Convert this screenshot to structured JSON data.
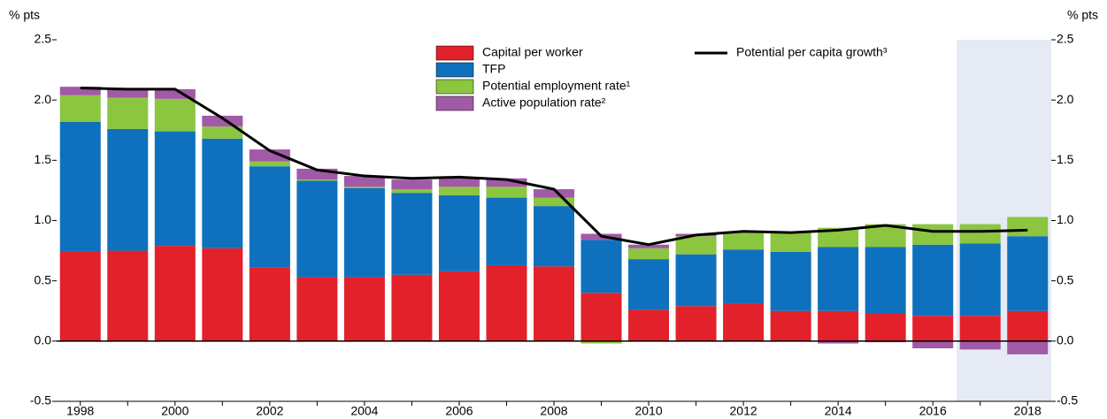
{
  "chart_data": {
    "type": "bar",
    "y_label": "% pts",
    "y2_label": "% pts",
    "categories": [
      "1998",
      null,
      "2000",
      null,
      "2002",
      null,
      "2004",
      null,
      "2006",
      null,
      "2008",
      null,
      "2010",
      null,
      "2012",
      null,
      "2014",
      null,
      "2016",
      null,
      "2018"
    ],
    "ylim": [
      -0.5,
      2.5
    ],
    "yticks": [
      -0.5,
      {
        "value": 0,
        "label": "0.0"
      },
      0.5,
      {
        "value": 1,
        "label": "1.0"
      },
      1.5,
      {
        "value": 2,
        "label": "2.0"
      },
      2.5
    ],
    "y2lim": [
      -0.5,
      2.5
    ],
    "y2ticks": [
      -0.5,
      {
        "value": 0,
        "label": "0.0"
      },
      0.5,
      {
        "value": 1,
        "label": "1.0"
      },
      1.5,
      {
        "value": 2,
        "label": "2.0"
      },
      2.5
    ],
    "stacked": true,
    "series": [
      {
        "name": "Capital per worker",
        "color": "#e3212b",
        "values": [
          0.74,
          0.75,
          0.79,
          0.77,
          0.61,
          0.53,
          0.53,
          0.55,
          0.58,
          0.63,
          0.62,
          0.4,
          0.26,
          0.29,
          0.31,
          0.25,
          0.25,
          0.23,
          0.21,
          0.21,
          0.25
        ]
      },
      {
        "name": " TFP",
        "color": "#0f71bd",
        "values": [
          1.08,
          1.01,
          0.95,
          0.91,
          0.84,
          0.8,
          0.74,
          0.68,
          0.63,
          0.56,
          0.5,
          0.44,
          0.42,
          0.43,
          0.45,
          0.49,
          0.53,
          0.55,
          0.59,
          0.6,
          0.62
        ]
      },
      {
        "name": "Potential employment rate¹",
        "color": "#8cc540",
        "values": [
          0.22,
          0.26,
          0.27,
          0.1,
          0.04,
          0.01,
          0.01,
          0.03,
          0.07,
          0.09,
          0.07,
          -0.02,
          0.09,
          0.15,
          0.15,
          0.16,
          0.16,
          0.19,
          0.17,
          0.16,
          0.16
        ]
      },
      {
        "name": "Active population rate²",
        "color": "#a05aa6",
        "values": [
          0.07,
          0.07,
          0.08,
          0.09,
          0.1,
          0.09,
          0.09,
          0.08,
          0.08,
          0.07,
          0.07,
          0.05,
          0.03,
          0.02,
          0,
          0,
          -0.02,
          -0.01,
          -0.06,
          -0.07,
          -0.11
        ]
      },
      {
        "name": "Potential per capita growth³",
        "color": "#000000",
        "type": "line",
        "values": [
          2.1,
          2.09,
          2.09,
          1.85,
          1.58,
          1.42,
          1.37,
          1.35,
          1.36,
          1.34,
          1.26,
          0.87,
          0.8,
          0.88,
          0.91,
          0.9,
          0.92,
          0.96,
          0.91,
          0.91,
          0.92
        ]
      }
    ]
  }
}
